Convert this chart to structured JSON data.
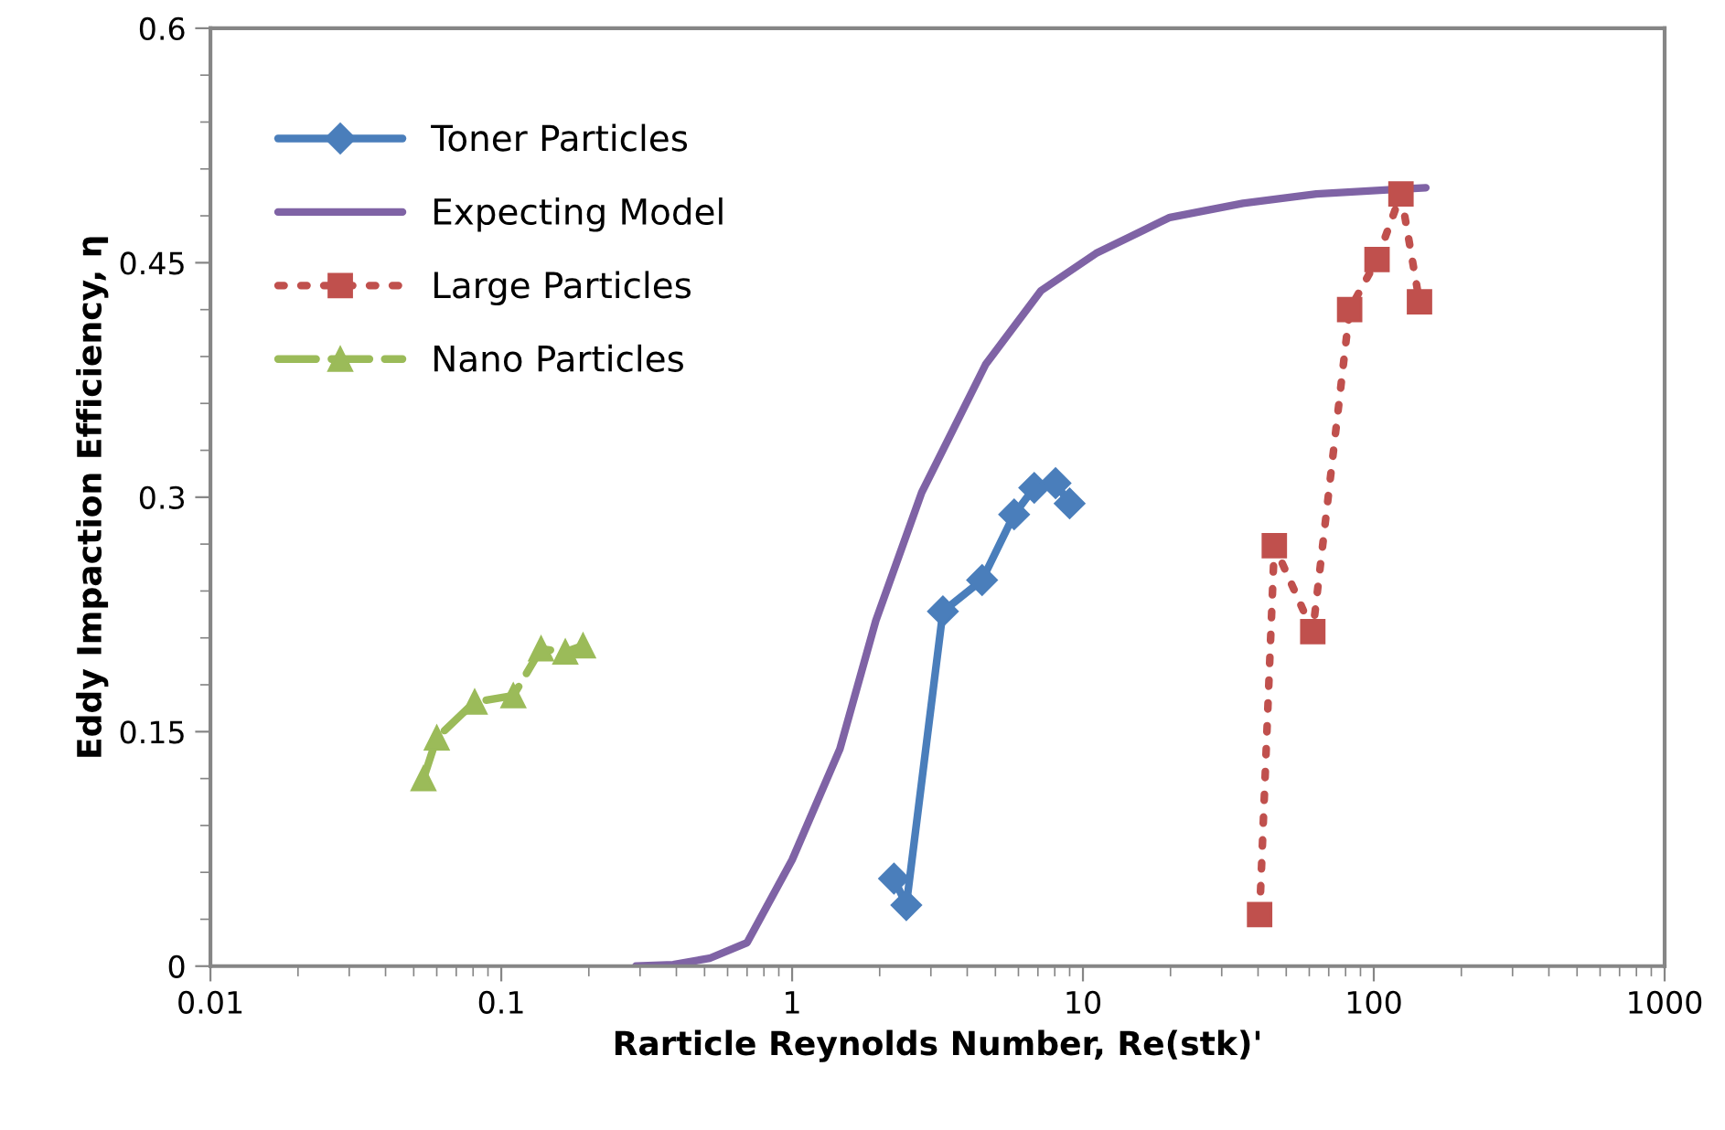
{
  "chart_data": {
    "type": "line",
    "xlabel": "Rarticle Reynolds Number, Re(stk)'",
    "ylabel": "Eddy Impaction Efficiency, η",
    "log": "x",
    "xlim": [
      0.01,
      1000
    ],
    "xticks": [
      0.01,
      0.1,
      1,
      10,
      100,
      1000
    ],
    "ylim": [
      0,
      0.6
    ],
    "yticks": [
      0,
      0.15,
      0.3,
      0.45,
      0.6
    ],
    "grid": false,
    "legend": "top left",
    "series": [
      {
        "name": "Toner Particles",
        "color": "#4a7ebb",
        "marker": "diamond",
        "line_style": "solid",
        "x": [
          2.24,
          2.47,
          3.3,
          4.5,
          5.8,
          6.8,
          8.05,
          9.0
        ],
        "values": [
          0.056,
          0.039,
          0.227,
          0.247,
          0.289,
          0.306,
          0.309,
          0.296
        ]
      },
      {
        "name": "Expecting Model",
        "color": "#7f63a5",
        "marker": "none",
        "line_style": "solid",
        "x": [
          0.29,
          0.39,
          0.52,
          0.7,
          1.0,
          1.46,
          1.94,
          2.79,
          4.63,
          7.16,
          11.1,
          19.9,
          35.5,
          63.5,
          151
        ],
        "values": [
          0,
          0.001,
          0.005,
          0.015,
          0.068,
          0.139,
          0.221,
          0.303,
          0.385,
          0.432,
          0.456,
          0.479,
          0.488,
          0.494,
          0.498
        ]
      },
      {
        "name": "Large Particles",
        "color": "#c0504d",
        "marker": "square",
        "line_style": "dotted",
        "x": [
          40.5,
          45.5,
          61.7,
          82.6,
          102.6,
          124,
          143.6
        ],
        "values": [
          0.033,
          0.269,
          0.214,
          0.42,
          0.452,
          0.494,
          0.425
        ]
      },
      {
        "name": "Nano Particles",
        "color": "#9bbb59",
        "marker": "triangle",
        "line_style": "dashed",
        "x": [
          0.054,
          0.06,
          0.081,
          0.11,
          0.137,
          0.166,
          0.191
        ],
        "values": [
          0.12,
          0.146,
          0.169,
          0.173,
          0.203,
          0.201,
          0.205
        ]
      }
    ]
  }
}
